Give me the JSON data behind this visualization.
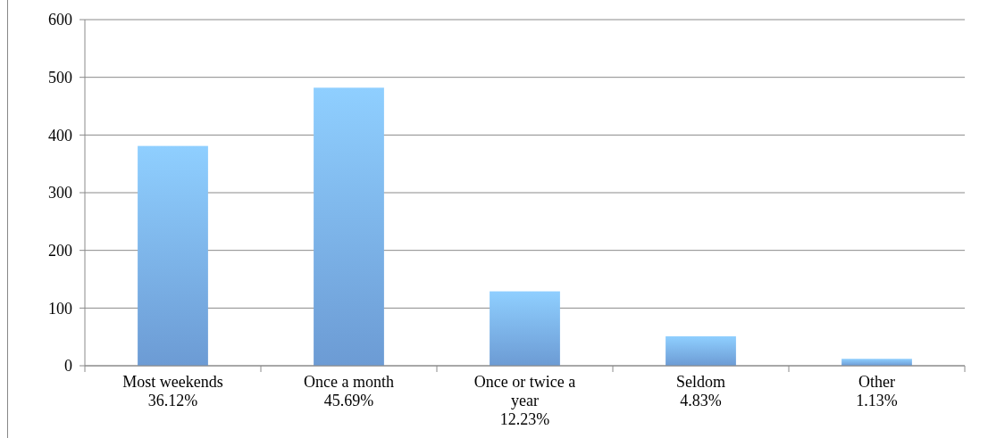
{
  "chart_data": {
    "type": "bar",
    "categories": [
      "Most weekends\n36.12%",
      "Once a month\n45.69%",
      "Once or twice a\nyear\n12.23%",
      "Seldom\n4.83%",
      "Other\n1.13%"
    ],
    "values": [
      381,
      482,
      129,
      51,
      12
    ],
    "color": "#7ab0f0",
    "ylim": [
      0,
      600
    ],
    "yticks": [
      0,
      100,
      200,
      300,
      400,
      500,
      600
    ],
    "grid": "y"
  }
}
